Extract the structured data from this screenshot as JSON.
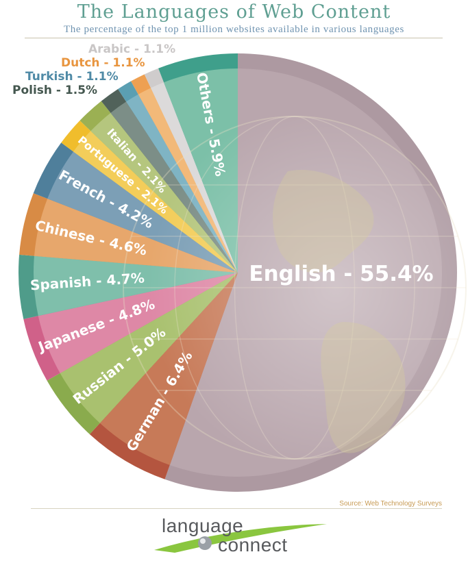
{
  "header": {
    "title": "The Languages of Web Content",
    "subtitle": "The percentage of the top 1 million websites available in various languages"
  },
  "footer": {
    "source": "Source: Web Technology Surveys",
    "logo_line1": "language",
    "logo_line2": "connect"
  },
  "chart_data": {
    "type": "pie",
    "slices": [
      {
        "label": "English - 55.4%",
        "name": "English",
        "value": 55.4,
        "color": "#b9a6ad",
        "ring": "#ad99a1",
        "text": "#ffffff"
      },
      {
        "label": "German - 6.4%",
        "name": "German",
        "value": 6.4,
        "color": "#c77a58",
        "ring": "#b4553f",
        "text": "#ffffff"
      },
      {
        "label": "Russian - 5.0%",
        "name": "Russian",
        "value": 5.0,
        "color": "#a9c16f",
        "ring": "#8aab4d",
        "text": "#ffffff"
      },
      {
        "label": "Japanese - 4.8%",
        "name": "Japanese",
        "value": 4.8,
        "color": "#de88a6",
        "ring": "#d06189",
        "text": "#ffffff"
      },
      {
        "label": "Spanish - 4.7%",
        "name": "Spanish",
        "value": 4.7,
        "color": "#7fbfab",
        "ring": "#4f9c8a",
        "text": "#ffffff"
      },
      {
        "label": "Chinese - 4.6%",
        "name": "Chinese",
        "value": 4.6,
        "color": "#e7a76c",
        "ring": "#d88b45",
        "text": "#ffffff"
      },
      {
        "label": "French - 4.2%",
        "name": "French",
        "value": 4.2,
        "color": "#7c9fb6",
        "ring": "#4f7f9b",
        "text": "#ffffff"
      },
      {
        "label": "Portuguese - 2.1%",
        "name": "Portuguese",
        "value": 2.1,
        "color": "#f3cd5a",
        "ring": "#f0bd2c",
        "text": "#ffffff"
      },
      {
        "label": "Italian - 2.1%",
        "name": "Italian",
        "value": 2.1,
        "color": "#b5c67e",
        "ring": "#9bb053",
        "text": "#ffffff"
      },
      {
        "label": "Polish - 1.5%",
        "name": "Polish",
        "value": 1.5,
        "color": "#7c8e87",
        "ring": "#51625a",
        "text": "#44574f"
      },
      {
        "label": "Turkish - 1.1%",
        "name": "Turkish",
        "value": 1.1,
        "color": "#7fb4c4",
        "ring": "#5b9fb2",
        "text": "#4f8aa6"
      },
      {
        "label": "Dutch - 1.1%",
        "name": "Dutch",
        "value": 1.1,
        "color": "#f2b979",
        "ring": "#eea052",
        "text": "#e8953f"
      },
      {
        "label": "Arabic - 1.1%",
        "name": "Arabic",
        "value": 1.1,
        "color": "#dcdada",
        "ring": "#cfcccc",
        "text": "#c9c6c6"
      },
      {
        "label": "Others - 5.9%",
        "name": "Others",
        "value": 5.9,
        "color": "#7cc0a8",
        "ring": "#3f9f8b",
        "text": "#ffffff"
      }
    ]
  }
}
